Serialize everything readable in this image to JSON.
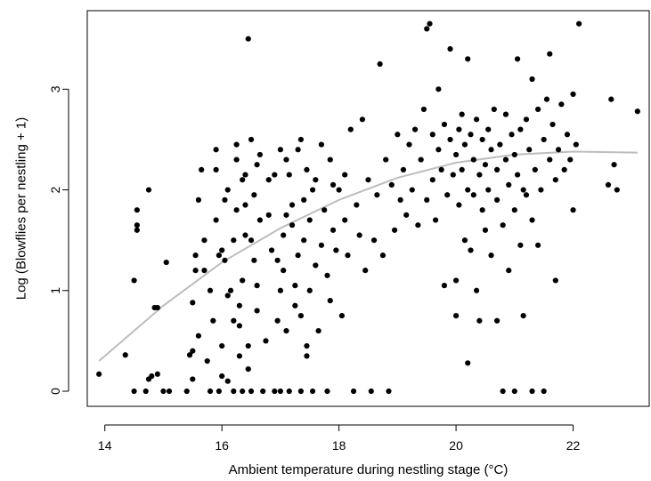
{
  "chart_data": {
    "type": "scatter",
    "xlabel": "Ambient temperature during nestling stage (°C)",
    "ylabel": "Log (Blowflies per nestling + 1)",
    "xlim": [
      13.7,
      23.3
    ],
    "ylim": [
      -0.15,
      3.78
    ],
    "x_ticks": [
      14,
      16,
      18,
      20,
      22
    ],
    "y_ticks": [
      0,
      1,
      2,
      3
    ],
    "grid": false,
    "point_color": "#000000",
    "fit_color": "#bdbdbd",
    "series": [
      {
        "kind": "points",
        "points": [
          [
            13.9,
            0.17
          ],
          [
            14.35,
            0.36
          ],
          [
            14.5,
            0
          ],
          [
            14.5,
            1.1
          ],
          [
            14.55,
            1.8
          ],
          [
            14.55,
            1.65
          ],
          [
            14.55,
            1.6
          ],
          [
            14.7,
            0
          ],
          [
            14.75,
            2.0
          ],
          [
            14.75,
            0.12
          ],
          [
            14.8,
            0.15
          ],
          [
            14.85,
            0.83
          ],
          [
            14.9,
            0.83
          ],
          [
            14.9,
            0.17
          ],
          [
            15.0,
            0
          ],
          [
            15.05,
            1.28
          ],
          [
            15.1,
            0
          ],
          [
            15.4,
            0
          ],
          [
            15.45,
            0.36
          ],
          [
            15.5,
            0.4
          ],
          [
            15.5,
            0.12
          ],
          [
            15.5,
            0.88
          ],
          [
            15.55,
            1.2
          ],
          [
            15.55,
            1.35
          ],
          [
            15.6,
            0.55
          ],
          [
            15.6,
            1.9
          ],
          [
            15.65,
            2.2
          ],
          [
            15.7,
            1.2
          ],
          [
            15.7,
            1.5
          ],
          [
            15.75,
            0.3
          ],
          [
            15.8,
            0
          ],
          [
            15.8,
            1.0
          ],
          [
            15.85,
            0.7
          ],
          [
            15.9,
            2.4
          ],
          [
            15.9,
            2.2
          ],
          [
            15.9,
            1.7
          ],
          [
            15.95,
            0
          ],
          [
            15.95,
            1.35
          ],
          [
            16.0,
            1.4
          ],
          [
            16.0,
            0.45
          ],
          [
            16.0,
            0.15
          ],
          [
            16.05,
            1.9
          ],
          [
            16.05,
            1.3
          ],
          [
            16.1,
            0.95
          ],
          [
            16.1,
            2.0
          ],
          [
            16.1,
            0.1
          ],
          [
            16.15,
            1.0
          ],
          [
            16.2,
            0
          ],
          [
            16.2,
            0.7
          ],
          [
            16.2,
            1.5
          ],
          [
            16.25,
            1.8
          ],
          [
            16.25,
            2.3
          ],
          [
            16.25,
            2.45
          ],
          [
            16.3,
            0.65
          ],
          [
            16.3,
            0.85
          ],
          [
            16.3,
            0.35
          ],
          [
            16.35,
            1.1
          ],
          [
            16.35,
            2.1
          ],
          [
            16.35,
            0
          ],
          [
            16.4,
            1.55
          ],
          [
            16.4,
            1.85
          ],
          [
            16.4,
            2.15
          ],
          [
            16.45,
            0.22
          ],
          [
            16.45,
            0.45
          ],
          [
            16.45,
            3.5
          ],
          [
            16.5,
            0
          ],
          [
            16.5,
            1.5
          ],
          [
            16.5,
            2.5
          ],
          [
            16.55,
            1.3
          ],
          [
            16.55,
            1.95
          ],
          [
            16.6,
            0.8
          ],
          [
            16.6,
            2.25
          ],
          [
            16.6,
            1.05
          ],
          [
            16.65,
            1.7
          ],
          [
            16.65,
            2.35
          ],
          [
            16.7,
            0
          ],
          [
            16.75,
            0.5
          ],
          [
            16.8,
            1.75
          ],
          [
            16.8,
            2.1
          ],
          [
            16.85,
            1.4
          ],
          [
            16.9,
            2.15
          ],
          [
            16.9,
            0
          ],
          [
            16.95,
            1.3
          ],
          [
            16.95,
            0.7
          ],
          [
            17.0,
            2.4
          ],
          [
            17.0,
            1.0
          ],
          [
            17.0,
            0
          ],
          [
            17.05,
            1.2
          ],
          [
            17.05,
            1.55
          ],
          [
            17.1,
            2.3
          ],
          [
            17.1,
            1.75
          ],
          [
            17.1,
            0.6
          ],
          [
            17.15,
            2.15
          ],
          [
            17.15,
            0
          ],
          [
            17.2,
            1.65
          ],
          [
            17.2,
            1.85
          ],
          [
            17.25,
            0.85
          ],
          [
            17.25,
            1.05
          ],
          [
            17.3,
            2.4
          ],
          [
            17.3,
            1.35
          ],
          [
            17.35,
            0.75
          ],
          [
            17.35,
            2.5
          ],
          [
            17.35,
            0
          ],
          [
            17.4,
            1.9
          ],
          [
            17.4,
            1.5
          ],
          [
            17.45,
            0.45
          ],
          [
            17.45,
            0.35
          ],
          [
            17.45,
            2.2
          ],
          [
            17.5,
            1.0
          ],
          [
            17.5,
            1.7
          ],
          [
            17.55,
            2.0
          ],
          [
            17.55,
            0
          ],
          [
            17.6,
            1.25
          ],
          [
            17.6,
            2.1
          ],
          [
            17.65,
            0.6
          ],
          [
            17.7,
            1.45
          ],
          [
            17.7,
            2.45
          ],
          [
            17.75,
            1.8
          ],
          [
            17.8,
            0
          ],
          [
            17.8,
            1.15
          ],
          [
            17.85,
            2.3
          ],
          [
            17.85,
            0.9
          ],
          [
            17.9,
            1.6
          ],
          [
            17.9,
            2.05
          ],
          [
            17.95,
            1.4
          ],
          [
            18.0,
            2.0
          ],
          [
            18.05,
            0.75
          ],
          [
            18.1,
            1.7
          ],
          [
            18.1,
            2.15
          ],
          [
            18.15,
            1.35
          ],
          [
            18.2,
            2.6
          ],
          [
            18.25,
            0
          ],
          [
            18.3,
            1.85
          ],
          [
            18.35,
            1.55
          ],
          [
            18.4,
            2.7
          ],
          [
            18.45,
            1.2
          ],
          [
            18.5,
            2.1
          ],
          [
            18.55,
            0
          ],
          [
            18.6,
            1.5
          ],
          [
            18.65,
            1.95
          ],
          [
            18.7,
            3.25
          ],
          [
            18.75,
            1.35
          ],
          [
            18.8,
            2.3
          ],
          [
            18.85,
            0
          ],
          [
            18.9,
            2.05
          ],
          [
            18.95,
            1.6
          ],
          [
            19.0,
            2.55
          ],
          [
            19.05,
            1.9
          ],
          [
            19.1,
            2.2
          ],
          [
            19.15,
            1.75
          ],
          [
            19.2,
            2.45
          ],
          [
            19.25,
            2.0
          ],
          [
            19.3,
            2.6
          ],
          [
            19.35,
            1.65
          ],
          [
            19.4,
            2.3
          ],
          [
            19.45,
            2.8
          ],
          [
            19.5,
            1.9
          ],
          [
            19.5,
            3.6
          ],
          [
            19.55,
            3.65
          ],
          [
            19.6,
            2.1
          ],
          [
            19.6,
            2.55
          ],
          [
            19.65,
            1.7
          ],
          [
            19.7,
            2.4
          ],
          [
            19.7,
            3.0
          ],
          [
            19.75,
            2.2
          ],
          [
            19.8,
            2.65
          ],
          [
            19.8,
            1.05
          ],
          [
            19.85,
            1.95
          ],
          [
            19.9,
            2.5
          ],
          [
            19.9,
            3.4
          ],
          [
            19.95,
            2.15
          ],
          [
            20.0,
            2.35
          ],
          [
            20.0,
            1.1
          ],
          [
            20.0,
            0.75
          ],
          [
            20.05,
            2.6
          ],
          [
            20.05,
            1.85
          ],
          [
            20.1,
            2.75
          ],
          [
            20.1,
            2.2
          ],
          [
            20.15,
            1.5
          ],
          [
            20.15,
            2.45
          ],
          [
            20.2,
            2.0
          ],
          [
            20.2,
            3.3
          ],
          [
            20.2,
            0.28
          ],
          [
            20.25,
            2.55
          ],
          [
            20.25,
            1.4
          ],
          [
            20.3,
            2.3
          ],
          [
            20.3,
            1.95
          ],
          [
            20.35,
            2.7
          ],
          [
            20.35,
            1.0
          ],
          [
            20.4,
            2.15
          ],
          [
            20.4,
            0.7
          ],
          [
            20.45,
            2.5
          ],
          [
            20.45,
            1.8
          ],
          [
            20.5,
            2.25
          ],
          [
            20.5,
            1.6
          ],
          [
            20.55,
            2.6
          ],
          [
            20.55,
            2.0
          ],
          [
            20.6,
            1.35
          ],
          [
            20.6,
            2.4
          ],
          [
            20.65,
            2.8
          ],
          [
            20.7,
            1.9
          ],
          [
            20.7,
            2.2
          ],
          [
            20.7,
            0.7
          ],
          [
            20.75,
            2.45
          ],
          [
            20.8,
            0
          ],
          [
            20.8,
            1.65
          ],
          [
            20.85,
            2.3
          ],
          [
            20.85,
            2.75
          ],
          [
            20.9,
            1.2
          ],
          [
            20.9,
            2.05
          ],
          [
            20.95,
            2.55
          ],
          [
            21.0,
            1.8
          ],
          [
            21.0,
            2.35
          ],
          [
            21.0,
            0
          ],
          [
            21.05,
            2.15
          ],
          [
            21.05,
            3.3
          ],
          [
            21.1,
            2.6
          ],
          [
            21.1,
            1.45
          ],
          [
            21.15,
            2.0
          ],
          [
            21.15,
            0.75
          ],
          [
            21.2,
            2.7
          ],
          [
            21.2,
            1.95
          ],
          [
            21.25,
            2.4
          ],
          [
            21.3,
            3.1
          ],
          [
            21.3,
            1.7
          ],
          [
            21.3,
            0
          ],
          [
            21.35,
            2.2
          ],
          [
            21.4,
            2.8
          ],
          [
            21.4,
            1.45
          ],
          [
            21.45,
            2.0
          ],
          [
            21.5,
            2.5
          ],
          [
            21.5,
            0
          ],
          [
            21.55,
            2.9
          ],
          [
            21.6,
            2.3
          ],
          [
            21.6,
            3.35
          ],
          [
            21.65,
            2.65
          ],
          [
            21.7,
            2.1
          ],
          [
            21.7,
            1.1
          ],
          [
            21.75,
            2.4
          ],
          [
            21.8,
            2.85
          ],
          [
            21.85,
            2.2
          ],
          [
            21.9,
            2.55
          ],
          [
            21.95,
            2.3
          ],
          [
            22.0,
            1.8
          ],
          [
            22.0,
            2.95
          ],
          [
            22.05,
            2.45
          ],
          [
            22.1,
            3.65
          ],
          [
            22.6,
            2.05
          ],
          [
            22.65,
            2.9
          ],
          [
            22.7,
            2.25
          ],
          [
            22.75,
            2.0
          ],
          [
            23.1,
            2.78
          ]
        ]
      },
      {
        "kind": "fit",
        "x": [
          13.9,
          15.0,
          16.0,
          17.0,
          18.0,
          19.0,
          20.0,
          21.0,
          22.0,
          23.1
        ],
        "y": [
          0.3,
          0.85,
          1.28,
          1.62,
          1.9,
          2.12,
          2.27,
          2.35,
          2.38,
          2.37
        ]
      }
    ]
  }
}
